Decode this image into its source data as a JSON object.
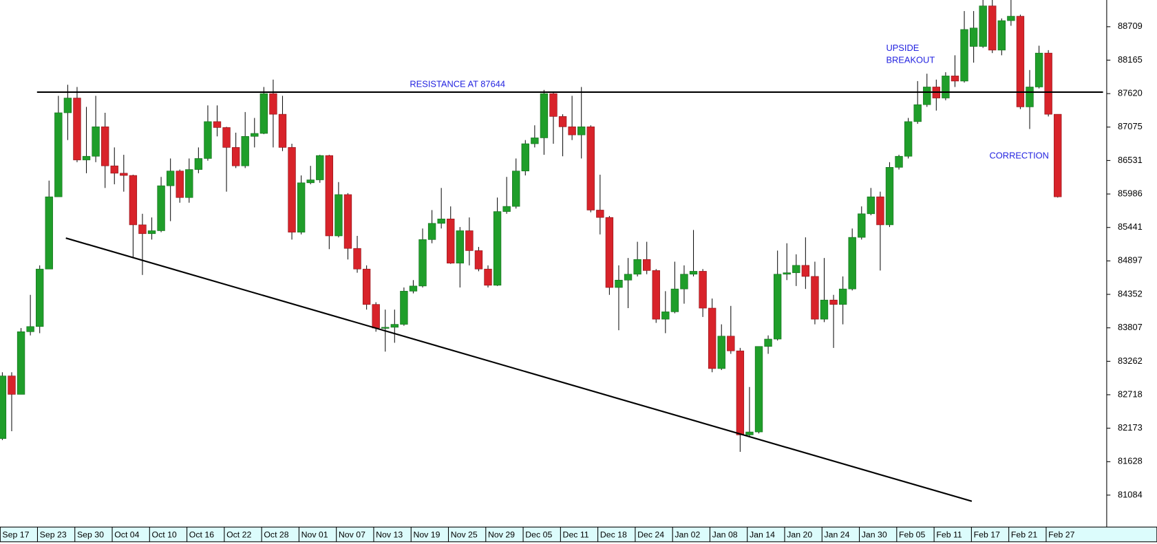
{
  "chart_data": {
    "type": "candlestick",
    "categories": [
      "Sep 17",
      null,
      null,
      null,
      "Sep 23",
      null,
      null,
      null,
      "Sep 30",
      null,
      null,
      null,
      "Oct 04",
      null,
      null,
      null,
      "Oct 10",
      null,
      null,
      null,
      "Oct 16",
      null,
      null,
      null,
      "Oct 22",
      null,
      null,
      null,
      "Oct 28",
      null,
      null,
      null,
      "Nov 01",
      null,
      null,
      null,
      "Nov 07",
      null,
      null,
      null,
      "Nov 13",
      null,
      null,
      null,
      "Nov 19",
      null,
      null,
      null,
      "Nov 25",
      null,
      null,
      null,
      "Nov 29",
      null,
      null,
      null,
      "Dec 05",
      null,
      null,
      null,
      "Dec 11",
      null,
      null,
      null,
      "Dec 18",
      null,
      null,
      null,
      "Dec 24",
      null,
      null,
      null,
      "Jan 02",
      null,
      null,
      null,
      "Jan 08",
      null,
      null,
      null,
      "Jan 14",
      null,
      null,
      null,
      "Jan 20",
      null,
      null,
      null,
      "Jan 24",
      null,
      null,
      null,
      "Jan 30",
      null,
      null,
      null,
      "Feb 05",
      null,
      null,
      null,
      "Feb 11",
      null,
      null,
      null,
      "Feb 17",
      null,
      null,
      null,
      "Feb 21",
      null,
      null,
      null,
      "Feb 27",
      null
    ],
    "open": [
      82004,
      83024,
      82724,
      83744,
      83828,
      84764,
      85940,
      87308,
      87548,
      86540,
      86600,
      87080,
      86444,
      86324,
      86288,
      85484,
      85340,
      85388,
      86120,
      86360,
      85928,
      86384,
      86564,
      87164,
      87068,
      86744,
      86444,
      86924,
      86972,
      87620,
      87284,
      86744,
      85364,
      86168,
      86216,
      86612,
      85304,
      85976,
      85100,
      84764,
      84188,
      83804,
      83816,
      83864,
      84404,
      84488,
      85244,
      85508,
      85580,
      84860,
      85388,
      85064,
      84764,
      84500,
      85700,
      85784,
      86360,
      86804,
      86900,
      87620,
      87248,
      87080,
      86948,
      87080,
      85724,
      85604,
      84464,
      84584,
      84680,
      84920,
      84740,
      83948,
      84068,
      84440,
      84680,
      84728,
      84128,
      83144,
      83672,
      83432,
      82064,
      82112,
      83504,
      83624,
      84680,
      84704,
      84824,
      84644,
      83948,
      84260,
      84188,
      84440,
      85280,
      85664,
      85940,
      85484,
      86420,
      86600,
      87164,
      87440,
      87728,
      87548,
      87908,
      87824,
      88388,
      88388,
      89048,
      88328,
      88808,
      88880,
      87404,
      87728,
      88280,
      87284
    ],
    "high": [
      83084,
      83084,
      83804,
      84344,
      84824,
      86204,
      87584,
      87764,
      87728,
      87404,
      87584,
      87308,
      86744,
      86624,
      86300,
      85664,
      85604,
      86264,
      86564,
      86384,
      86564,
      86744,
      87428,
      87428,
      87080,
      86984,
      87320,
      87224,
      87728,
      87848,
      87584,
      86804,
      86288,
      86444,
      86624,
      86624,
      86180,
      86000,
      85304,
      84824,
      84224,
      84104,
      84104,
      84464,
      84584,
      85424,
      85724,
      86084,
      85784,
      85448,
      85604,
      85124,
      84824,
      85928,
      86264,
      86564,
      86864,
      87104,
      87680,
      87644,
      87284,
      87584,
      87728,
      87104,
      86300,
      85628,
      84824,
      84944,
      85208,
      85208,
      84764,
      84404,
      84884,
      84824,
      85400,
      84764,
      84284,
      83864,
      84164,
      83480,
      82844,
      83504,
      83684,
      85064,
      85184,
      85004,
      85280,
      84884,
      84944,
      84344,
      84644,
      85424,
      85784,
      86084,
      86024,
      86504,
      86624,
      87224,
      87824,
      87944,
      87848,
      87968,
      88244,
      88964,
      88964,
      89144,
      89144,
      88844,
      89144,
      88904,
      88004,
      88400,
      88328,
      87284
    ],
    "low": [
      81980,
      82124,
      82724,
      83684,
      83720,
      84764,
      85940,
      86864,
      86504,
      86324,
      86504,
      86084,
      86144,
      86024,
      84944,
      84668,
      85244,
      85364,
      85544,
      85844,
      85844,
      86324,
      86528,
      86924,
      86024,
      86408,
      86408,
      86744,
      86960,
      86744,
      86684,
      85244,
      85328,
      86144,
      86168,
      85088,
      85280,
      84920,
      84704,
      84104,
      83744,
      83420,
      83564,
      83840,
      84368,
      84464,
      85184,
      85424,
      84848,
      84464,
      84824,
      84728,
      84464,
      84488,
      85664,
      85748,
      86288,
      86744,
      86624,
      86804,
      86600,
      86864,
      86564,
      85688,
      85328,
      84344,
      83768,
      84128,
      84644,
      84680,
      83888,
      83720,
      84044,
      84200,
      84644,
      83984,
      83084,
      83120,
      83384,
      81788,
      82040,
      82088,
      83384,
      83600,
      84584,
      84488,
      84440,
      83864,
      83900,
      83480,
      83864,
      84416,
      85244,
      85640,
      84740,
      85448,
      86384,
      86564,
      87128,
      87404,
      87344,
      87512,
      87728,
      87800,
      88124,
      88364,
      88280,
      88244,
      88724,
      87368,
      87044,
      87704,
      87248,
      85928
    ],
    "close": [
      83024,
      82724,
      83744,
      83828,
      84764,
      85940,
      87308,
      87548,
      86540,
      86600,
      87080,
      86444,
      86324,
      86288,
      85484,
      85340,
      85388,
      86120,
      86360,
      85928,
      86384,
      86564,
      87164,
      87068,
      86744,
      86444,
      86924,
      86972,
      87620,
      87284,
      86744,
      85364,
      86168,
      86216,
      86612,
      85304,
      85976,
      85100,
      84764,
      84188,
      83804,
      83816,
      83864,
      84404,
      84488,
      85244,
      85508,
      85580,
      84860,
      85388,
      85064,
      84764,
      84500,
      85700,
      85784,
      86360,
      86804,
      86900,
      87620,
      87248,
      87080,
      86948,
      87080,
      85724,
      85604,
      84464,
      84584,
      84680,
      84920,
      84740,
      83948,
      84068,
      84440,
      84680,
      84728,
      84128,
      83144,
      83672,
      83432,
      82064,
      82112,
      83504,
      83624,
      84680,
      84704,
      84824,
      84644,
      83948,
      84260,
      84188,
      84440,
      85280,
      85664,
      85940,
      85484,
      86420,
      86600,
      87164,
      87440,
      87728,
      87548,
      87908,
      87824,
      88664,
      88688,
      89048,
      88328,
      88808,
      88880,
      87404,
      87728,
      88280,
      87284,
      85940
    ],
    "up_color": "#1f9e2a",
    "down_color": "#d8232a",
    "ylim": [
      80588,
      89144
    ],
    "yticks": [
      88709,
      88165,
      87620,
      87075,
      86531,
      85986,
      85441,
      84897,
      84352,
      83807,
      83262,
      82718,
      82173,
      81628,
      81084
    ],
    "resistance": 87644,
    "trendline": {
      "x": [
        6.8,
        103.8
      ],
      "values": [
        85268,
        80984
      ]
    },
    "annotations": [
      "RESISTANCE AT 87644",
      "UPSIDE",
      "BREAKOUT",
      "CORRECTION"
    ]
  }
}
